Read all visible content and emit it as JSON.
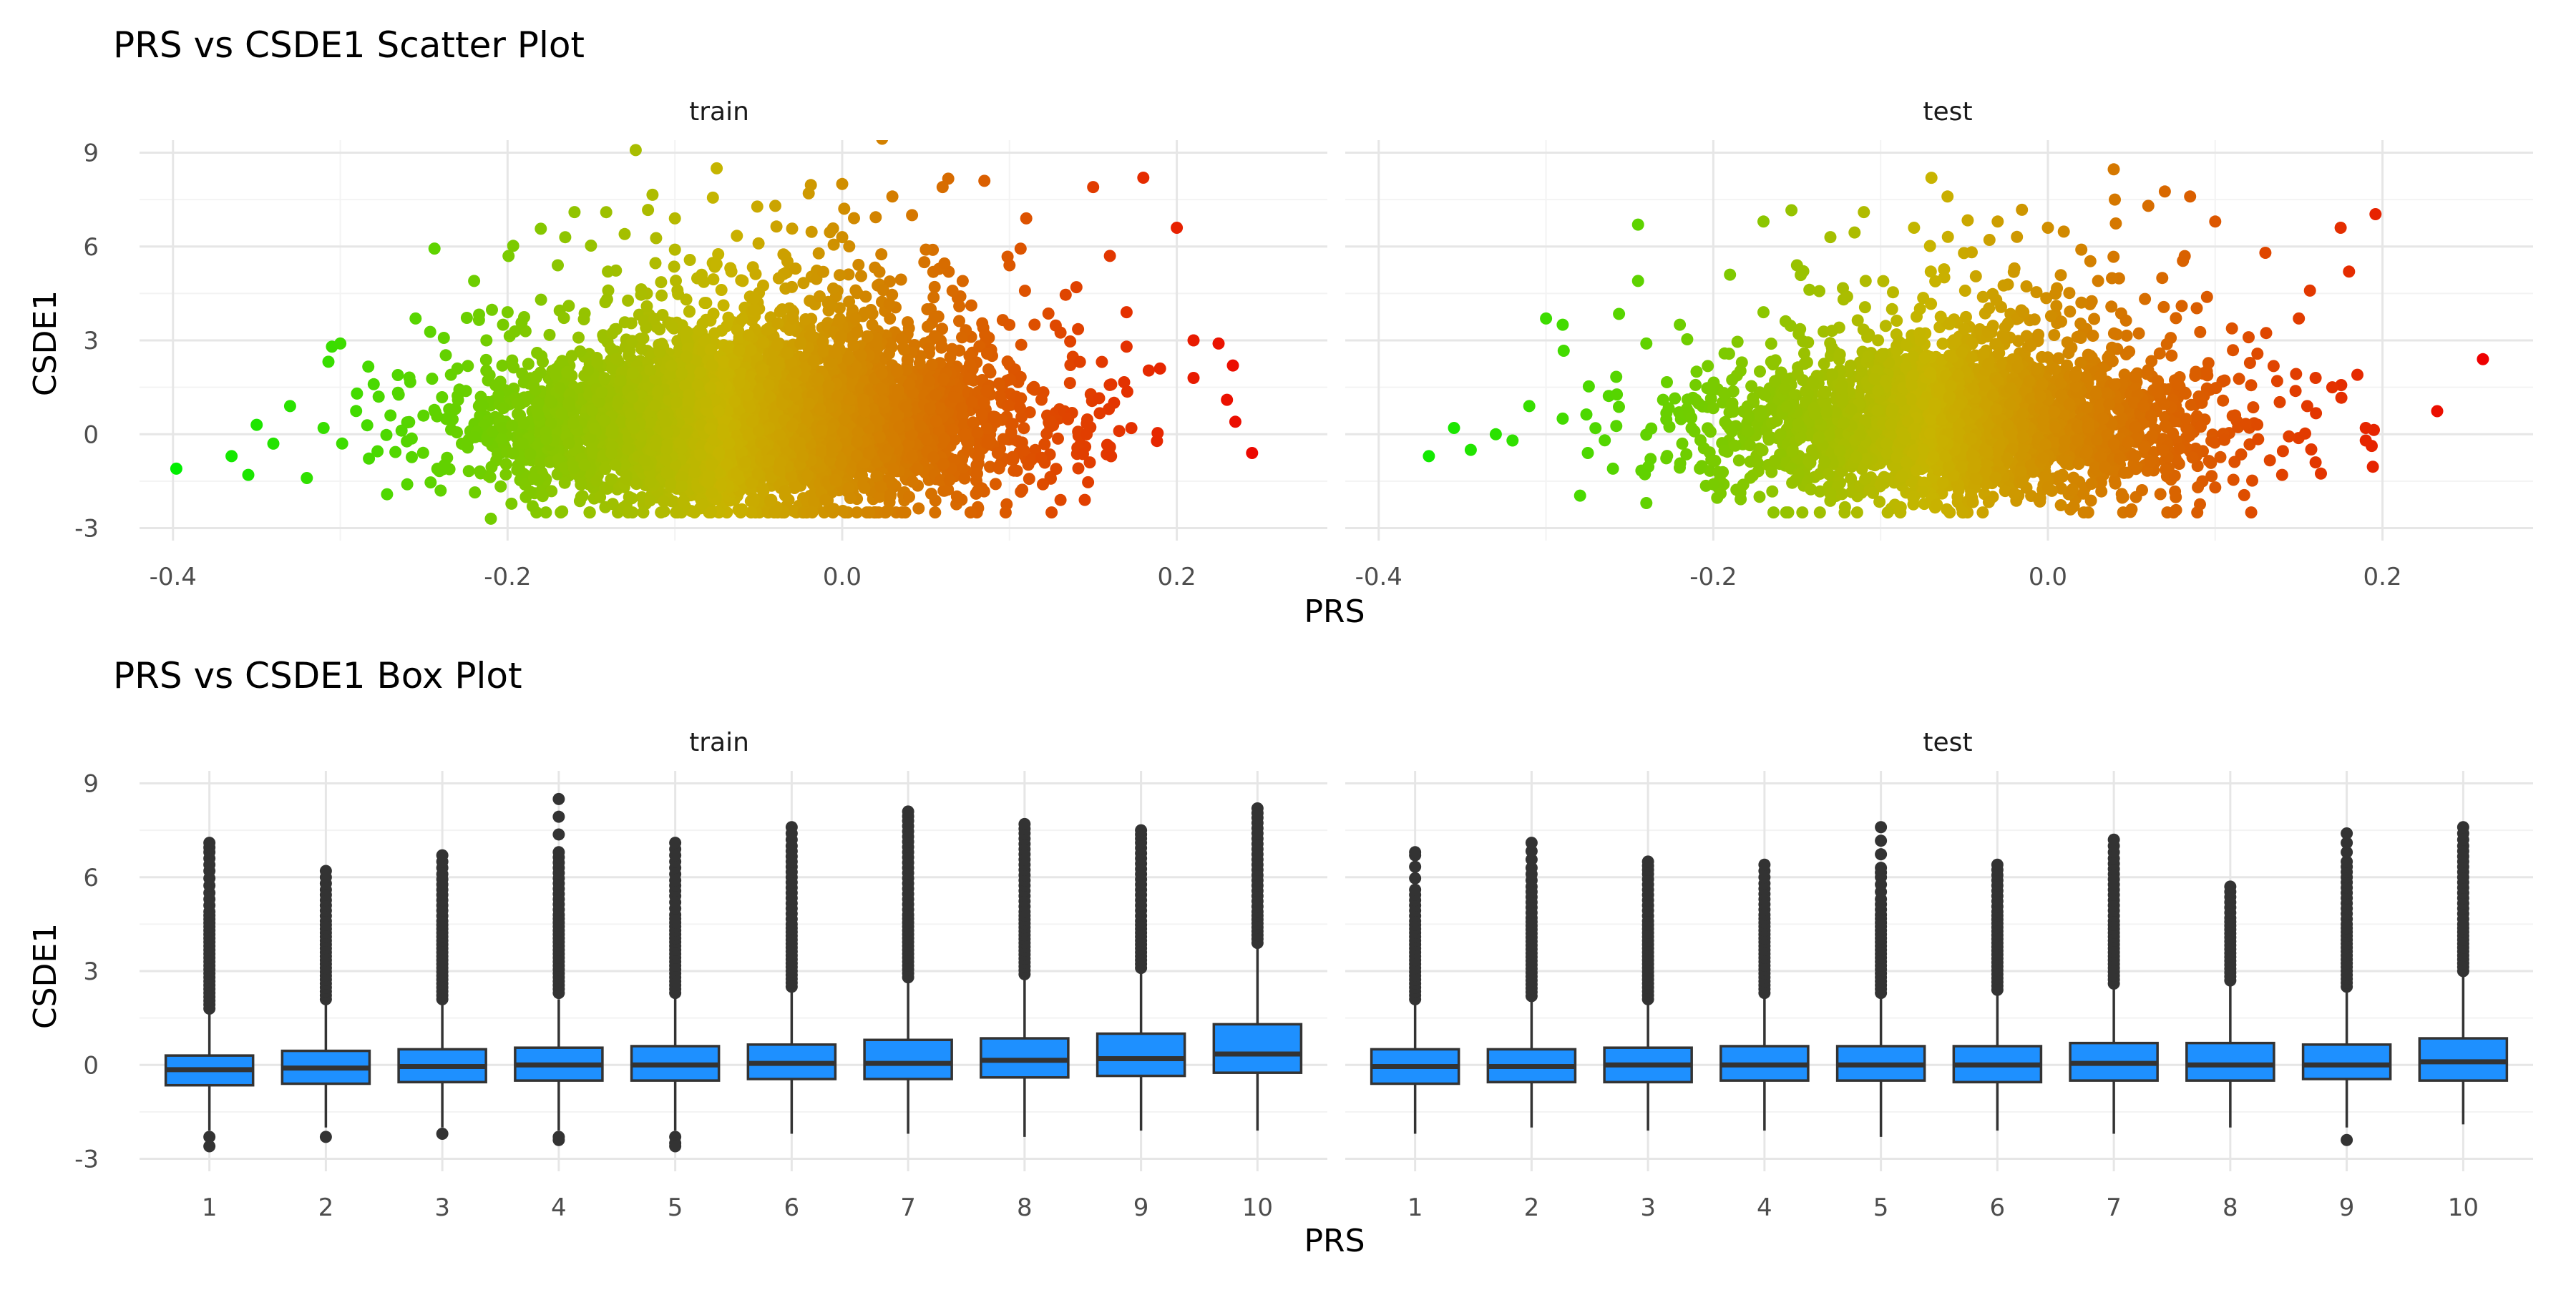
{
  "chart_data": [
    {
      "type": "scatter",
      "title": "PRS vs CSDE1 Scatter Plot",
      "xlabel": "PRS",
      "ylabel": "CSDE1",
      "color_scale": {
        "low": "#00ee00",
        "mid": "#c8b400",
        "high": "#ee0000"
      },
      "panels": [
        {
          "facet": "train",
          "xlim": [
            -0.42,
            0.29
          ],
          "ylim": [
            -3.4,
            9.4
          ],
          "x_ticks": [
            -0.4,
            -0.2,
            0.0,
            0.2
          ],
          "x_tick_labels": [
            "-0.4",
            "-0.2",
            "0.0",
            "0.2"
          ],
          "y_ticks": [
            -3,
            0,
            3,
            6,
            9
          ],
          "y_tick_labels": [
            "-3",
            "0",
            "3",
            "6",
            "9"
          ],
          "points": [
            [
              -0.398,
              -1.1
            ],
            [
              -0.365,
              -0.7
            ],
            [
              -0.355,
              -1.3
            ],
            [
              -0.34,
              -0.3
            ],
            [
              -0.33,
              0.9
            ],
            [
              -0.32,
              -1.4
            ],
            [
              -0.305,
              2.8
            ],
            [
              -0.3,
              2.9
            ],
            [
              -0.29,
              1.3
            ],
            [
              -0.27,
              0.6
            ],
            [
              -0.255,
              3.7
            ],
            [
              -0.24,
              -1.8
            ],
            [
              -0.22,
              4.9
            ],
            [
              -0.2,
              3.9
            ],
            [
              -0.185,
              -2.3
            ],
            [
              -0.17,
              5.4
            ],
            [
              -0.16,
              7.1
            ],
            [
              -0.13,
              6.4
            ],
            [
              -0.1,
              6.9
            ],
            [
              -0.075,
              8.5
            ],
            [
              -0.06,
              -2.4
            ],
            [
              -0.04,
              7.3
            ],
            [
              -0.02,
              7.7
            ],
            [
              0.0,
              8.0
            ],
            [
              0.03,
              7.6
            ],
            [
              0.06,
              7.9
            ],
            [
              0.085,
              8.1
            ],
            [
              0.11,
              6.9
            ],
            [
              0.15,
              7.9
            ],
            [
              0.18,
              8.2
            ],
            [
              0.2,
              6.6
            ],
            [
              0.21,
              3.0
            ],
            [
              0.225,
              2.9
            ],
            [
              0.23,
              1.1
            ],
            [
              0.235,
              0.4
            ],
            [
              0.245,
              -0.6
            ],
            [
              0.21,
              1.8
            ],
            [
              0.19,
              2.1
            ],
            [
              0.17,
              3.9
            ],
            [
              0.16,
              5.7
            ],
            [
              0.145,
              -2.1
            ],
            [
              0.12,
              -1.6
            ],
            [
              0.08,
              -1.9
            ],
            [
              0.04,
              -2.0
            ],
            [
              -0.01,
              -2.1
            ],
            [
              -0.21,
              -2.7
            ],
            [
              -0.26,
              -1.6
            ],
            [
              -0.28,
              1.6
            ],
            [
              -0.31,
              0.2
            ],
            [
              -0.35,
              0.3
            ],
            [
              -0.23,
              2.1
            ],
            [
              -0.18,
              4.3
            ],
            [
              -0.14,
              5.2
            ],
            [
              -0.1,
              5.9
            ],
            [
              -0.05,
              6.1
            ],
            [
              0.0,
              6.3
            ],
            [
              0.05,
              5.9
            ],
            [
              0.1,
              5.4
            ],
            [
              0.14,
              4.7
            ],
            [
              0.17,
              2.8
            ]
          ]
        },
        {
          "facet": "test",
          "xlim": [
            -0.42,
            0.29
          ],
          "ylim": [
            -3.4,
            9.4
          ],
          "x_ticks": [
            -0.4,
            -0.2,
            0.0,
            0.2
          ],
          "x_tick_labels": [
            "-0.4",
            "-0.2",
            "0.0",
            "0.2"
          ],
          "y_ticks": [
            -3,
            0,
            3,
            6,
            9
          ],
          "y_tick_labels": [
            "-3",
            "0",
            "3",
            "6",
            "9"
          ],
          "points": [
            [
              -0.37,
              -0.7
            ],
            [
              -0.355,
              0.2
            ],
            [
              -0.345,
              -0.5
            ],
            [
              -0.33,
              0.0
            ],
            [
              -0.31,
              0.9
            ],
            [
              -0.3,
              3.7
            ],
            [
              -0.29,
              3.5
            ],
            [
              -0.275,
              -0.6
            ],
            [
              -0.26,
              -1.1
            ],
            [
              -0.245,
              6.7
            ],
            [
              -0.245,
              4.9
            ],
            [
              -0.24,
              -2.2
            ],
            [
              -0.23,
              1.1
            ],
            [
              -0.21,
              2.0
            ],
            [
              -0.19,
              5.1
            ],
            [
              -0.17,
              6.8
            ],
            [
              -0.15,
              5.4
            ],
            [
              -0.13,
              6.3
            ],
            [
              -0.11,
              7.1
            ],
            [
              -0.08,
              6.6
            ],
            [
              -0.06,
              7.6
            ],
            [
              -0.03,
              6.8
            ],
            [
              0.0,
              6.6
            ],
            [
              0.02,
              5.9
            ],
            [
              0.04,
              7.5
            ],
            [
              0.06,
              7.3
            ],
            [
              0.085,
              7.6
            ],
            [
              0.1,
              6.8
            ],
            [
              0.13,
              5.8
            ],
            [
              0.15,
              3.7
            ],
            [
              0.16,
              1.8
            ],
            [
              0.17,
              1.5
            ],
            [
              0.175,
              6.6
            ],
            [
              0.18,
              5.2
            ],
            [
              0.185,
              1.9
            ],
            [
              0.19,
              0.2
            ],
            [
              0.19,
              -0.2
            ],
            [
              0.26,
              2.4
            ],
            [
              0.14,
              -1.3
            ],
            [
              0.1,
              -1.7
            ],
            [
              0.05,
              -2.4
            ],
            [
              -0.02,
              -1.9
            ],
            [
              -0.08,
              -2.0
            ],
            [
              -0.13,
              -1.9
            ],
            [
              -0.2,
              -1.6
            ],
            [
              -0.24,
              2.9
            ],
            [
              -0.22,
              3.5
            ],
            [
              -0.17,
              3.9
            ],
            [
              -0.12,
              4.4
            ],
            [
              -0.07,
              5.2
            ],
            [
              -0.02,
              5.3
            ],
            [
              0.03,
              4.9
            ],
            [
              0.08,
              4.1
            ],
            [
              0.12,
              3.1
            ],
            [
              0.155,
              0.9
            ],
            [
              0.16,
              -0.9
            ],
            [
              -0.29,
              0.5
            ],
            [
              -0.32,
              -0.2
            ],
            [
              -0.1,
              -1.6
            ],
            [
              0.0,
              -1.7
            ]
          ]
        }
      ]
    },
    {
      "type": "box",
      "title": "PRS vs CSDE1 Box Plot",
      "xlabel": "PRS",
      "ylabel": "CSDE1",
      "fill_color": "#1e90ff",
      "categories": [
        "1",
        "2",
        "3",
        "4",
        "5",
        "6",
        "7",
        "8",
        "9",
        "10"
      ],
      "ylim": [
        -3.4,
        9.4
      ],
      "y_ticks": [
        -3,
        0,
        3,
        6,
        9
      ],
      "y_tick_labels": [
        "-3",
        "0",
        "3",
        "6",
        "9"
      ],
      "panels": [
        {
          "facet": "train",
          "boxes": [
            {
              "q1": -0.65,
              "median": -0.15,
              "q3": 0.3,
              "lower": -2.1,
              "upper": 1.7,
              "outliers_top": [
                1.8,
                2.3,
                2.8,
                3.3,
                3.8,
                4.3,
                4.9,
                5.5,
                6.2,
                6.8,
                7.1
              ],
              "outliers_bottom": [
                -2.3,
                -2.6
              ]
            },
            {
              "q1": -0.6,
              "median": -0.1,
              "q3": 0.45,
              "lower": -2.0,
              "upper": 2.0,
              "outliers_top": [
                2.1,
                2.6,
                3.1,
                3.6,
                4.1,
                4.6,
                5.1,
                5.6,
                6.2
              ],
              "outliers_bottom": [
                -2.3
              ]
            },
            {
              "q1": -0.55,
              "median": -0.05,
              "q3": 0.5,
              "lower": -2.0,
              "upper": 2.0,
              "outliers_top": [
                2.1,
                2.6,
                3.1,
                3.6,
                4.1,
                4.6,
                5.1,
                5.6,
                6.1,
                6.7
              ],
              "outliers_bottom": [
                -2.2
              ]
            },
            {
              "q1": -0.5,
              "median": 0.0,
              "q3": 0.55,
              "lower": -2.1,
              "upper": 2.1,
              "outliers_top": [
                2.3,
                2.8,
                3.3,
                3.8,
                4.3,
                4.8,
                5.3,
                5.8,
                6.3,
                6.8,
                8.5
              ],
              "outliers_bottom": [
                -2.3,
                -2.4
              ]
            },
            {
              "q1": -0.5,
              "median": 0.0,
              "q3": 0.6,
              "lower": -2.1,
              "upper": 2.2,
              "outliers_top": [
                2.3,
                2.8,
                3.3,
                3.8,
                4.3,
                4.8,
                5.4,
                5.9,
                6.5,
                7.1
              ],
              "outliers_bottom": [
                -2.3,
                -2.5,
                -2.6
              ]
            },
            {
              "q1": -0.45,
              "median": 0.05,
              "q3": 0.65,
              "lower": -2.2,
              "upper": 2.4,
              "outliers_top": [
                2.5,
                3.0,
                3.5,
                4.0,
                4.5,
                5.0,
                5.5,
                6.0,
                6.5,
                7.0,
                7.6
              ]
            },
            {
              "q1": -0.45,
              "median": 0.05,
              "q3": 0.8,
              "lower": -2.2,
              "upper": 2.7,
              "outliers_top": [
                2.8,
                3.3,
                3.8,
                4.3,
                4.8,
                5.3,
                5.8,
                6.3,
                6.8,
                7.3,
                7.8,
                8.1
              ]
            },
            {
              "q1": -0.4,
              "median": 0.15,
              "q3": 0.85,
              "lower": -2.3,
              "upper": 2.8,
              "outliers_top": [
                2.9,
                3.4,
                3.9,
                4.4,
                4.9,
                5.4,
                5.9,
                6.4,
                6.9,
                7.4,
                7.7
              ]
            },
            {
              "q1": -0.35,
              "median": 0.2,
              "q3": 1.0,
              "lower": -2.1,
              "upper": 3.0,
              "outliers_top": [
                3.1,
                3.6,
                4.1,
                4.6,
                5.1,
                5.6,
                6.1,
                6.6,
                7.1,
                7.5
              ]
            },
            {
              "q1": -0.25,
              "median": 0.35,
              "q3": 1.3,
              "lower": -2.1,
              "upper": 3.8,
              "outliers_top": [
                3.9,
                4.4,
                4.9,
                5.4,
                5.9,
                6.4,
                6.9,
                7.4,
                7.9,
                8.2
              ]
            }
          ]
        },
        {
          "facet": "test",
          "boxes": [
            {
              "q1": -0.6,
              "median": -0.05,
              "q3": 0.5,
              "lower": -2.2,
              "upper": 2.0,
              "outliers_top": [
                2.1,
                2.6,
                3.1,
                3.6,
                4.1,
                4.6,
                5.1,
                5.6,
                6.7,
                6.8
              ]
            },
            {
              "q1": -0.55,
              "median": -0.05,
              "q3": 0.5,
              "lower": -2.0,
              "upper": 2.1,
              "outliers_top": [
                2.2,
                2.7,
                3.2,
                3.7,
                4.2,
                4.7,
                5.2,
                5.7,
                6.3,
                7.1
              ]
            },
            {
              "q1": -0.55,
              "median": 0.0,
              "q3": 0.55,
              "lower": -2.1,
              "upper": 2.0,
              "outliers_top": [
                2.1,
                2.6,
                3.1,
                3.6,
                4.1,
                4.6,
                5.1,
                5.6,
                6.1,
                6.5
              ]
            },
            {
              "q1": -0.5,
              "median": 0.0,
              "q3": 0.6,
              "lower": -2.1,
              "upper": 2.2,
              "outliers_top": [
                2.3,
                2.8,
                3.3,
                3.8,
                4.3,
                4.8,
                5.3,
                5.8,
                6.4
              ]
            },
            {
              "q1": -0.5,
              "median": 0.0,
              "q3": 0.6,
              "lower": -2.3,
              "upper": 2.2,
              "outliers_top": [
                2.3,
                2.8,
                3.3,
                3.8,
                4.3,
                4.8,
                5.3,
                6.0,
                6.3,
                7.6
              ]
            },
            {
              "q1": -0.55,
              "median": 0.0,
              "q3": 0.6,
              "lower": -2.1,
              "upper": 2.3,
              "outliers_top": [
                2.4,
                2.9,
                3.4,
                3.9,
                4.4,
                4.9,
                5.4,
                5.9,
                6.4
              ]
            },
            {
              "q1": -0.5,
              "median": 0.05,
              "q3": 0.7,
              "lower": -2.2,
              "upper": 2.5,
              "outliers_top": [
                2.6,
                3.1,
                3.6,
                4.1,
                4.6,
                5.1,
                5.6,
                6.1,
                6.6,
                7.2
              ]
            },
            {
              "q1": -0.5,
              "median": 0.0,
              "q3": 0.7,
              "lower": -2.0,
              "upper": 2.6,
              "outliers_top": [
                2.7,
                3.2,
                3.7,
                4.2,
                4.7,
                5.2,
                5.7
              ]
            },
            {
              "q1": -0.45,
              "median": 0.0,
              "q3": 0.65,
              "lower": -2.0,
              "upper": 2.4,
              "outliers_top": [
                2.5,
                3.0,
                3.5,
                4.0,
                4.5,
                5.0,
                5.5,
                6.0,
                6.5,
                7.4
              ],
              "outliers_bottom": [
                -2.4
              ]
            },
            {
              "q1": -0.5,
              "median": 0.1,
              "q3": 0.85,
              "lower": -1.9,
              "upper": 2.9,
              "outliers_top": [
                3.0,
                3.5,
                4.0,
                4.5,
                5.0,
                5.5,
                6.0,
                6.5,
                7.0,
                7.6
              ]
            }
          ]
        }
      ]
    }
  ]
}
